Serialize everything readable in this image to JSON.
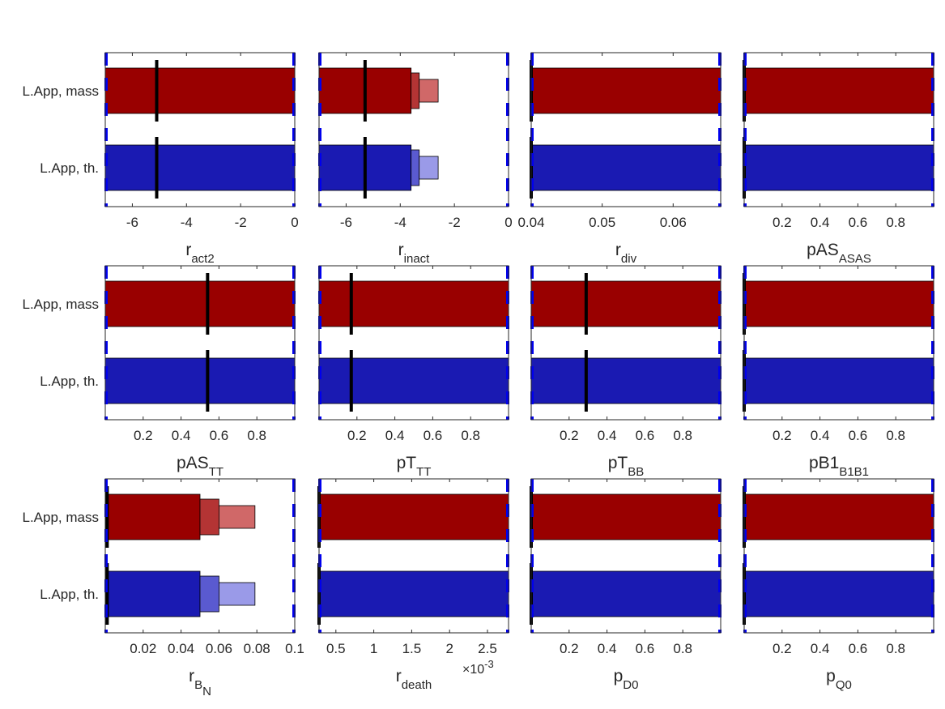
{
  "colors": {
    "mass_main": "#990000",
    "mass_mid": "#b43434",
    "mass_light": "#d06868",
    "th_main": "#1a1ab2",
    "th_mid": "#5a5ad0",
    "th_light": "#9a9ae8",
    "bound_dash": "#0000ee",
    "estimate_line": "#000000"
  },
  "row_labels": [
    "L.App, mass",
    "L.App, th."
  ],
  "chart_data": [
    {
      "type": "bar",
      "orientation": "horizontal",
      "label_main": "r",
      "label_sub": "act2",
      "xlim": [
        -7,
        0
      ],
      "ticks": [
        -6,
        -4,
        -2,
        0
      ],
      "tick_labels": [
        "-6",
        "-4",
        "-2",
        "0"
      ],
      "row_labels": true,
      "bounds": [
        -7,
        0
      ],
      "series": [
        {
          "bars": [
            {
              "from": -7,
              "to": 0,
              "shade": "main"
            }
          ],
          "estimate": -5.1
        },
        {
          "bars": [
            {
              "from": -7,
              "to": 0,
              "shade": "main"
            }
          ],
          "estimate": -5.1
        }
      ]
    },
    {
      "type": "bar",
      "orientation": "horizontal",
      "label_main": "r",
      "label_sub": "inact",
      "xlim": [
        -7,
        0
      ],
      "ticks": [
        -6,
        -4,
        -2,
        0
      ],
      "tick_labels": [
        "-6",
        "-4",
        "-2",
        "0"
      ],
      "bounds": [
        -7,
        0
      ],
      "series": [
        {
          "bars": [
            {
              "from": -7,
              "to": -3.6,
              "shade": "main"
            },
            {
              "from": -3.6,
              "to": -3.3,
              "shade": "mid"
            },
            {
              "from": -3.3,
              "to": -2.6,
              "shade": "light"
            }
          ],
          "estimate": -5.3
        },
        {
          "bars": [
            {
              "from": -7,
              "to": -3.6,
              "shade": "main"
            },
            {
              "from": -3.6,
              "to": -3.3,
              "shade": "mid"
            },
            {
              "from": -3.3,
              "to": -2.6,
              "shade": "light"
            }
          ],
          "estimate": -5.3
        }
      ]
    },
    {
      "type": "bar",
      "orientation": "horizontal",
      "label_main": "r",
      "label_sub": "div",
      "xlim": [
        0.04,
        0.0667
      ],
      "ticks": [
        0.04,
        0.05,
        0.06
      ],
      "tick_labels": [
        "0.04",
        "0.05",
        "0.06"
      ],
      "bounds": [
        0.04,
        0.0667
      ],
      "series": [
        {
          "bars": [
            {
              "from": 0.04,
              "to": 0.0667,
              "shade": "main"
            }
          ],
          "estimate": 0.04
        },
        {
          "bars": [
            {
              "from": 0.04,
              "to": 0.0667,
              "shade": "main"
            }
          ],
          "estimate": 0.04
        }
      ]
    },
    {
      "type": "bar",
      "orientation": "horizontal",
      "label_main": "pAS",
      "label_sub": "ASAS",
      "xlim": [
        0,
        1
      ],
      "ticks": [
        0.2,
        0.4,
        0.6,
        0.8
      ],
      "tick_labels": [
        "0.2",
        "0.4",
        "0.6",
        "0.8"
      ],
      "bounds": [
        0,
        1
      ],
      "series": [
        {
          "bars": [
            {
              "from": 0,
              "to": 1,
              "shade": "main"
            }
          ],
          "estimate": 0
        },
        {
          "bars": [
            {
              "from": 0,
              "to": 1,
              "shade": "main"
            }
          ],
          "estimate": 0
        }
      ]
    },
    {
      "type": "bar",
      "orientation": "horizontal",
      "label_main": "pAS",
      "label_sub": "TT",
      "xlim": [
        0,
        1
      ],
      "ticks": [
        0.2,
        0.4,
        0.6,
        0.8
      ],
      "tick_labels": [
        "0.2",
        "0.4",
        "0.6",
        "0.8"
      ],
      "row_labels": true,
      "bounds": [
        0,
        1
      ],
      "series": [
        {
          "bars": [
            {
              "from": 0,
              "to": 1,
              "shade": "main"
            }
          ],
          "estimate": 0.54
        },
        {
          "bars": [
            {
              "from": 0,
              "to": 1,
              "shade": "main"
            }
          ],
          "estimate": 0.54
        }
      ]
    },
    {
      "type": "bar",
      "orientation": "horizontal",
      "label_main": "pT",
      "label_sub": "TT",
      "xlim": [
        0,
        1
      ],
      "ticks": [
        0.2,
        0.4,
        0.6,
        0.8
      ],
      "tick_labels": [
        "0.2",
        "0.4",
        "0.6",
        "0.8"
      ],
      "bounds": [
        0,
        1
      ],
      "series": [
        {
          "bars": [
            {
              "from": 0,
              "to": 1,
              "shade": "main"
            }
          ],
          "estimate": 0.17
        },
        {
          "bars": [
            {
              "from": 0,
              "to": 1,
              "shade": "main"
            }
          ],
          "estimate": 0.17
        }
      ]
    },
    {
      "type": "bar",
      "orientation": "horizontal",
      "label_main": "pT",
      "label_sub": "BB",
      "xlim": [
        0,
        1
      ],
      "ticks": [
        0.2,
        0.4,
        0.6,
        0.8
      ],
      "tick_labels": [
        "0.2",
        "0.4",
        "0.6",
        "0.8"
      ],
      "bounds": [
        0,
        1
      ],
      "series": [
        {
          "bars": [
            {
              "from": 0,
              "to": 1,
              "shade": "main"
            }
          ],
          "estimate": 0.29
        },
        {
          "bars": [
            {
              "from": 0,
              "to": 1,
              "shade": "main"
            }
          ],
          "estimate": 0.29
        }
      ]
    },
    {
      "type": "bar",
      "orientation": "horizontal",
      "label_main": "pB1",
      "label_sub": "B1B1",
      "xlim": [
        0,
        1
      ],
      "ticks": [
        0.2,
        0.4,
        0.6,
        0.8
      ],
      "tick_labels": [
        "0.2",
        "0.4",
        "0.6",
        "0.8"
      ],
      "bounds": [
        0,
        1
      ],
      "series": [
        {
          "bars": [
            {
              "from": 0,
              "to": 1,
              "shade": "main"
            }
          ],
          "estimate": 0
        },
        {
          "bars": [
            {
              "from": 0,
              "to": 1,
              "shade": "main"
            }
          ],
          "estimate": 0
        }
      ]
    },
    {
      "type": "bar",
      "orientation": "horizontal",
      "label_main": "r",
      "label_sub": "B",
      "label_subsub": "N",
      "xlim": [
        0,
        0.1
      ],
      "ticks": [
        0.02,
        0.04,
        0.06,
        0.08,
        0.1
      ],
      "tick_labels": [
        "0.02",
        "0.04",
        "0.06",
        "0.08",
        "0.1"
      ],
      "row_labels": true,
      "bounds": [
        0,
        0.1
      ],
      "series": [
        {
          "bars": [
            {
              "from": 0,
              "to": 0.05,
              "shade": "main"
            },
            {
              "from": 0.05,
              "to": 0.06,
              "shade": "mid"
            },
            {
              "from": 0.06,
              "to": 0.079,
              "shade": "light"
            }
          ],
          "estimate": 0.001
        },
        {
          "bars": [
            {
              "from": 0,
              "to": 0.05,
              "shade": "main"
            },
            {
              "from": 0.05,
              "to": 0.06,
              "shade": "mid"
            },
            {
              "from": 0.06,
              "to": 0.079,
              "shade": "light"
            }
          ],
          "estimate": 0.001
        }
      ]
    },
    {
      "type": "bar",
      "orientation": "horizontal",
      "label_main": "r",
      "label_sub": "death",
      "sci_base": "×10",
      "sci_exp": "-3",
      "xlim": [
        0.2778,
        2.778
      ],
      "ticks": [
        0.5,
        1,
        1.5,
        2,
        2.5
      ],
      "tick_labels": [
        "0.5",
        "1",
        "1.5",
        "2",
        "2.5"
      ],
      "bounds": [
        0.2778,
        2.778
      ],
      "series": [
        {
          "bars": [
            {
              "from": 0.2778,
              "to": 2.778,
              "shade": "main"
            }
          ],
          "estimate": 0.2778
        },
        {
          "bars": [
            {
              "from": 0.2778,
              "to": 2.778,
              "shade": "main"
            }
          ],
          "estimate": 0.2778
        }
      ]
    },
    {
      "type": "bar",
      "orientation": "horizontal",
      "label_main": "p",
      "label_sub": "D0",
      "xlim": [
        0,
        1
      ],
      "ticks": [
        0.2,
        0.4,
        0.6,
        0.8
      ],
      "tick_labels": [
        "0.2",
        "0.4",
        "0.6",
        "0.8"
      ],
      "bounds": [
        0,
        1
      ],
      "series": [
        {
          "bars": [
            {
              "from": 0,
              "to": 1,
              "shade": "main"
            }
          ],
          "estimate": 0
        },
        {
          "bars": [
            {
              "from": 0,
              "to": 1,
              "shade": "main"
            }
          ],
          "estimate": 0
        }
      ]
    },
    {
      "type": "bar",
      "orientation": "horizontal",
      "label_main": "p",
      "label_sub": "Q0",
      "xlim": [
        0,
        1
      ],
      "ticks": [
        0.2,
        0.4,
        0.6,
        0.8
      ],
      "tick_labels": [
        "0.2",
        "0.4",
        "0.6",
        "0.8"
      ],
      "bounds": [
        0,
        1
      ],
      "series": [
        {
          "bars": [
            {
              "from": 0,
              "to": 1,
              "shade": "main"
            }
          ],
          "estimate": 0
        },
        {
          "bars": [
            {
              "from": 0,
              "to": 1,
              "shade": "main"
            }
          ],
          "estimate": 0
        }
      ]
    }
  ]
}
